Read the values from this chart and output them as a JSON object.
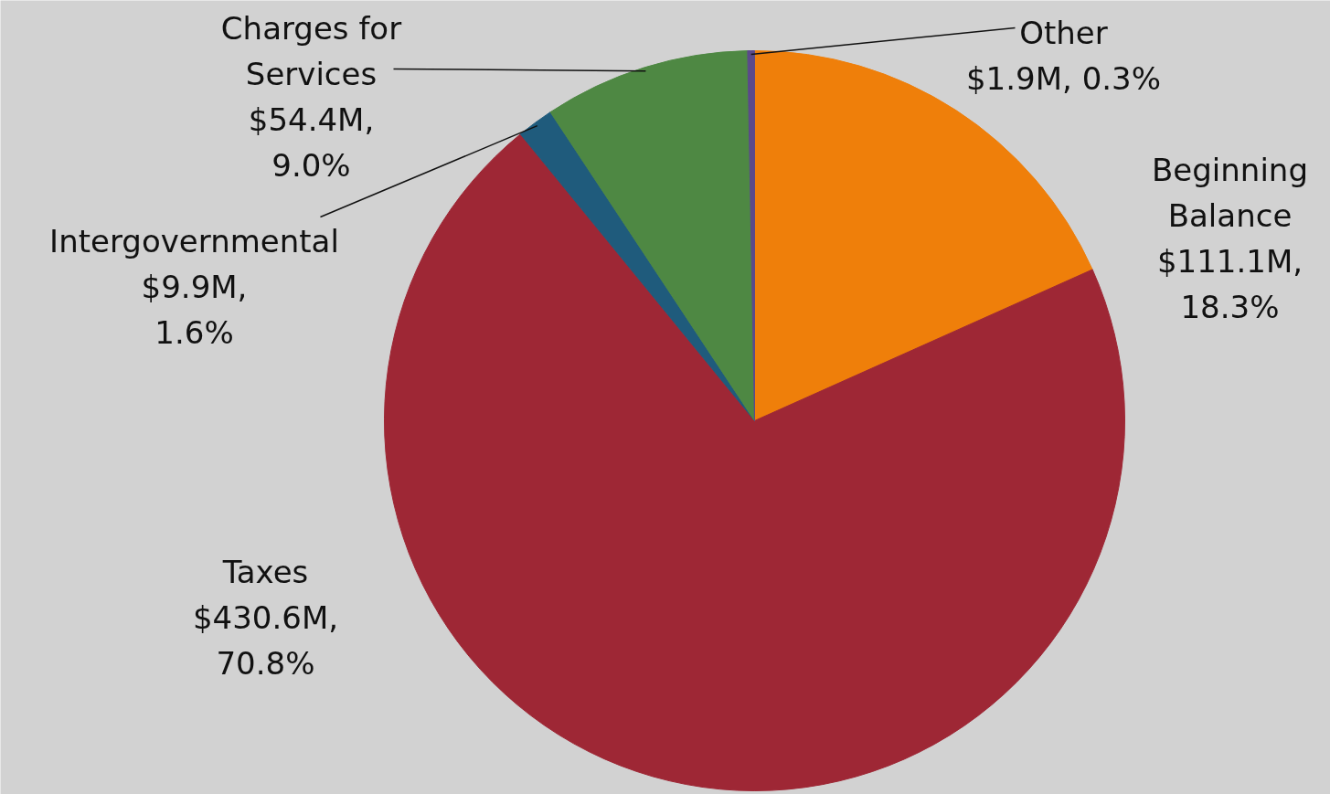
{
  "chart_data": {
    "type": "pie",
    "categories": [
      "Beginning Balance",
      "Taxes",
      "Intergovernmental",
      "Charges for Services",
      "Other"
    ],
    "values": [
      18.3,
      70.8,
      1.6,
      9.0,
      0.3
    ],
    "colors": [
      "#ef7f0a",
      "#9e2735",
      "#1f5b7c",
      "#4e8843",
      "#5b4a8a"
    ],
    "value_labels": [
      "$111.1M, 18.3%",
      "$430.6M, 70.8%",
      "$9.9M, 1.6%",
      "$54.4M, 9.0%",
      "$1.9M, 0.3%"
    ]
  }
}
